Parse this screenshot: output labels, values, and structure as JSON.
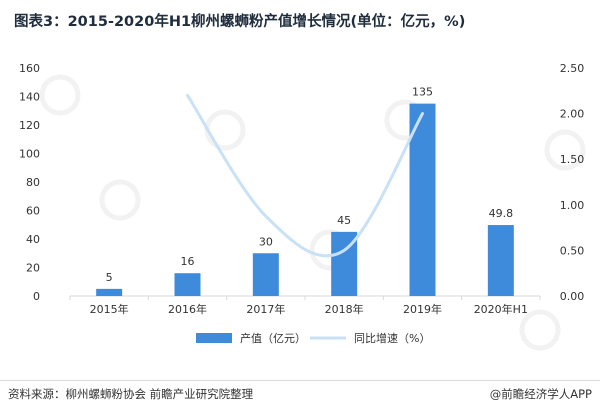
{
  "page": {
    "title": "图表3：2015-2020年H1柳州螺蛳粉产值增长情况(单位：亿元，%)",
    "source": "资料来源：柳州螺蛳粉协会 前瞻产业研究院整理",
    "brand": "@前瞻经济学人APP"
  },
  "chart_data": {
    "type": "bar",
    "categories": [
      "2015年",
      "2016年",
      "2017年",
      "2018年",
      "2019年",
      "2020年H1"
    ],
    "series": [
      {
        "name": "产值（亿元）",
        "type": "bar",
        "axis": "left",
        "values": [
          5,
          16,
          30,
          45,
          135,
          49.8
        ],
        "labels": [
          "5",
          "16",
          "30",
          "45",
          "135",
          "49.8"
        ]
      },
      {
        "name": "同比增速（%）",
        "type": "line",
        "axis": "right",
        "values": [
          null,
          2.2,
          0.875,
          0.5,
          2.0,
          null
        ]
      }
    ],
    "y_left": {
      "ylim": [
        0,
        160
      ],
      "ticks": [
        "0",
        "20",
        "40",
        "60",
        "80",
        "100",
        "120",
        "140",
        "160"
      ]
    },
    "y_right": {
      "ylim": [
        0,
        2.5
      ],
      "ticks": [
        "0.00",
        "0.50",
        "1.00",
        "1.50",
        "2.00",
        "2.50"
      ]
    },
    "grid": false,
    "legend": "bottom",
    "colors": {
      "bar": "#3f8bdb",
      "line": "#c9e1f7"
    }
  }
}
